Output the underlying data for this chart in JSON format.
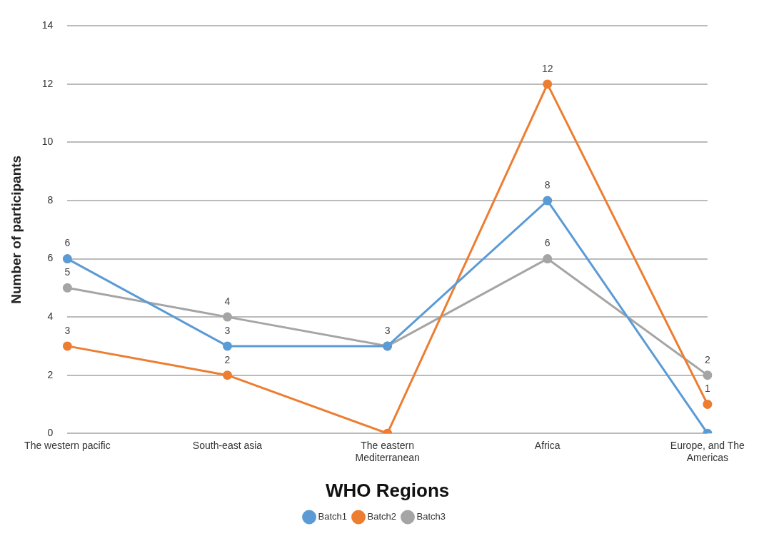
{
  "chart_data": {
    "type": "line",
    "xlabel": "WHO Regions",
    "ylabel": "Number of participants",
    "categories": [
      "The western pacific",
      "South-east asia",
      "The eastern Mediterranean",
      "Africa",
      "Europe, and The Americas"
    ],
    "series": [
      {
        "name": "Batch1",
        "color": "#5b9bd5",
        "values": [
          6,
          3,
          3,
          8,
          0
        ],
        "value_labels": [
          "6",
          "3",
          null,
          "8",
          null
        ]
      },
      {
        "name": "Batch2",
        "color": "#ed7d31",
        "values": [
          3,
          2,
          0,
          12,
          1
        ],
        "value_labels": [
          "3",
          "2",
          null,
          "12",
          "1"
        ]
      },
      {
        "name": "Batch3",
        "color": "#a5a5a5",
        "values": [
          5,
          4,
          3,
          6,
          2
        ],
        "value_labels": [
          "5",
          "4",
          "3",
          "6",
          "2"
        ]
      }
    ],
    "ylim": [
      0,
      14
    ],
    "yticks": [
      0,
      2,
      4,
      6,
      8,
      10,
      12,
      14
    ],
    "grid": "y",
    "legend": "bottom",
    "marker": "circle",
    "line_style": "solid"
  }
}
